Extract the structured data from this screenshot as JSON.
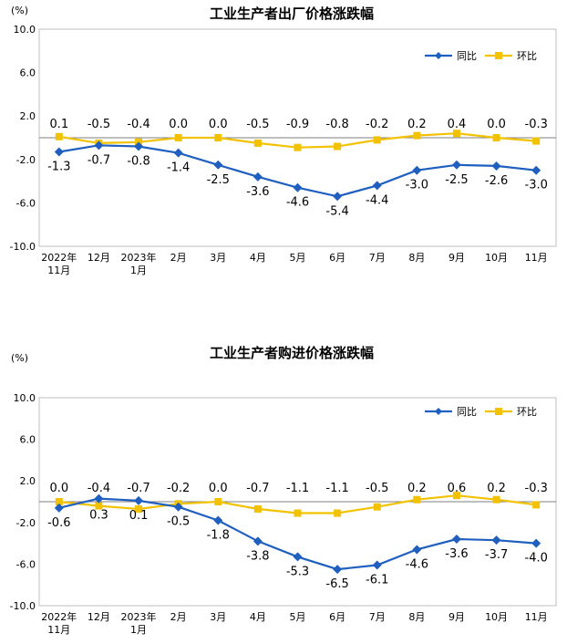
{
  "chart_data": [
    {
      "type": "line",
      "title": "工业生产者出厂价格涨跌幅",
      "unit": "(%)",
      "categories": [
        [
          "2022年",
          "11月"
        ],
        [
          "12月"
        ],
        [
          "2023年",
          "1月"
        ],
        [
          "2月"
        ],
        [
          "3月"
        ],
        [
          "4月"
        ],
        [
          "5月"
        ],
        [
          "6月"
        ],
        [
          "7月"
        ],
        [
          "8月"
        ],
        [
          "9月"
        ],
        [
          "10月"
        ],
        [
          "11月"
        ]
      ],
      "yticks": [
        "10.0",
        "6.0",
        "2.0",
        "-2.0",
        "-6.0",
        "-10.0"
      ],
      "ylim": [
        -10,
        10
      ],
      "series": [
        {
          "name": "同比",
          "color": "#1f5fbf",
          "marker": "diamond",
          "values": [
            -1.3,
            -0.7,
            -0.8,
            -1.4,
            -2.5,
            -3.6,
            -4.6,
            -5.4,
            -4.4,
            -3.0,
            -2.5,
            -2.6,
            -3.0
          ],
          "labels": [
            "-1.3",
            "-0.7",
            "-0.8",
            "-1.4",
            "-2.5",
            "-3.6",
            "-4.6",
            "-5.4",
            "-4.4",
            "-3.0",
            "-2.5",
            "-2.6",
            "-3.0"
          ]
        },
        {
          "name": "环比",
          "color": "#f2c200",
          "marker": "square",
          "values": [
            0.1,
            -0.5,
            -0.4,
            0.0,
            0.0,
            -0.5,
            -0.9,
            -0.8,
            -0.2,
            0.2,
            0.4,
            0.0,
            -0.3
          ],
          "labels": [
            "0.1",
            "-0.5",
            "-0.4",
            "0.0",
            "0.0",
            "-0.5",
            "-0.9",
            "-0.8",
            "-0.2",
            "0.2",
            "0.4",
            "0.0",
            "-0.3"
          ]
        }
      ],
      "legend": [
        "同比",
        "环比"
      ]
    },
    {
      "type": "line",
      "title": "工业生产者购进价格涨跌幅",
      "unit": "(%)",
      "categories": [
        [
          "2022年",
          "11月"
        ],
        [
          "12月"
        ],
        [
          "2023年",
          "1月"
        ],
        [
          "2月"
        ],
        [
          "3月"
        ],
        [
          "4月"
        ],
        [
          "5月"
        ],
        [
          "6月"
        ],
        [
          "7月"
        ],
        [
          "8月"
        ],
        [
          "9月"
        ],
        [
          "10月"
        ],
        [
          "11月"
        ]
      ],
      "yticks": [
        "10.0",
        "6.0",
        "2.0",
        "-2.0",
        "-6.0",
        "-10.0"
      ],
      "ylim": [
        -10,
        10
      ],
      "series": [
        {
          "name": "同比",
          "color": "#1f5fbf",
          "marker": "diamond",
          "values": [
            -0.6,
            0.3,
            0.1,
            -0.5,
            -1.8,
            -3.8,
            -5.3,
            -6.5,
            -6.1,
            -4.6,
            -3.6,
            -3.7,
            -4.0
          ],
          "labels": [
            "-0.6",
            "0.3",
            "0.1",
            "-0.5",
            "-1.8",
            "-3.8",
            "-5.3",
            "-6.5",
            "-6.1",
            "-4.6",
            "-3.6",
            "-3.7",
            "-4.0"
          ]
        },
        {
          "name": "环比",
          "color": "#f2c200",
          "marker": "square",
          "values": [
            0.0,
            -0.4,
            -0.7,
            -0.2,
            0.0,
            -0.7,
            -1.1,
            -1.1,
            -0.5,
            0.2,
            0.6,
            0.2,
            -0.3
          ],
          "labels": [
            "0.0",
            "-0.4",
            "-0.7",
            "-0.2",
            "0.0",
            "-0.7",
            "-1.1",
            "-1.1",
            "-0.5",
            "0.2",
            "0.6",
            "0.2",
            "-0.3"
          ]
        }
      ],
      "legend": [
        "同比",
        "环比"
      ]
    }
  ]
}
